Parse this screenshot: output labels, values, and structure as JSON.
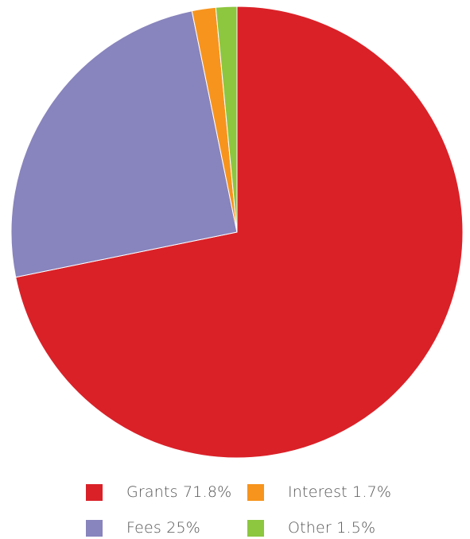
{
  "chart_data": {
    "type": "pie",
    "title": "",
    "slices": [
      {
        "label": "Grants 71.8%",
        "name": "Grants",
        "value": 71.8,
        "color": "#da2128"
      },
      {
        "label": "Fees 25%",
        "name": "Fees",
        "value": 25,
        "color": "#8884bd"
      },
      {
        "label": "Interest 1.7%",
        "name": "Interest",
        "value": 1.7,
        "color": "#f7941d"
      },
      {
        "label": "Other 1.5%",
        "name": "Other",
        "value": 1.5,
        "color": "#8dc63f"
      }
    ],
    "legend_position": "bottom",
    "start": "12 o'clock",
    "direction": "clockwise"
  }
}
